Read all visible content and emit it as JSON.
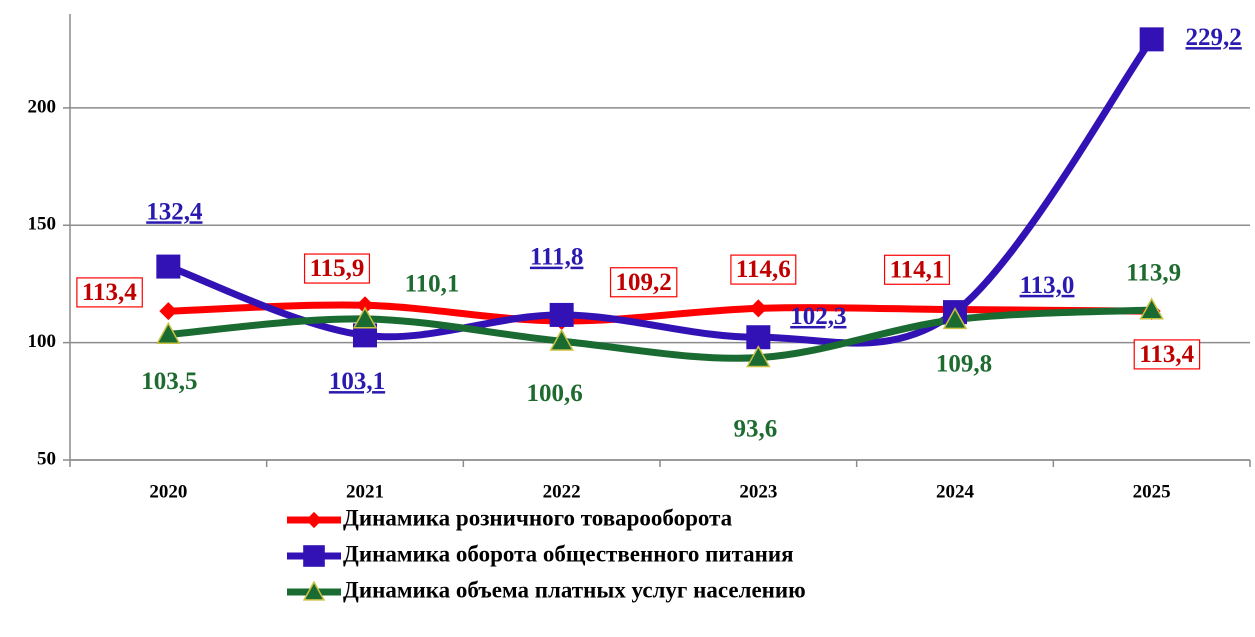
{
  "chart_data": {
    "type": "line",
    "categories": [
      "2020",
      "2021",
      "2022",
      "2023",
      "2024",
      "2025"
    ],
    "series": [
      {
        "name": "Динамика розничного товарооборота",
        "color": "#ff0000",
        "label_color": "#c00000",
        "marker": "diamond",
        "values": [
          113.4,
          115.9,
          109.2,
          114.6,
          114.1,
          113.4
        ],
        "value_labels": [
          "113,4",
          "115,9",
          "109,2",
          "114,6",
          "114,1",
          "113,4"
        ]
      },
      {
        "name": "Динамика оборота общественного питания",
        "color": "#3212b4",
        "label_color": "#2b1ab0",
        "marker": "square",
        "values": [
          132.4,
          103.1,
          111.8,
          102.3,
          113.0,
          229.2
        ],
        "value_labels": [
          "132,4",
          "103,1",
          "111,8",
          "102,3",
          "113,0",
          "229,2"
        ]
      },
      {
        "name": "Динамика объема платных услуг населению",
        "color": "#1a6b32",
        "label_color": "#1e6b30",
        "marker": "triangle",
        "values": [
          103.5,
          110.1,
          100.6,
          93.6,
          109.8,
          113.9
        ],
        "value_labels": [
          "103,5",
          "110,1",
          "100,6",
          "93,6",
          "109,8",
          "113,9"
        ]
      }
    ],
    "ylim": [
      50,
      240
    ],
    "yticks": [
      50,
      100,
      150,
      200
    ],
    "grid": true,
    "legend": "bottom"
  }
}
